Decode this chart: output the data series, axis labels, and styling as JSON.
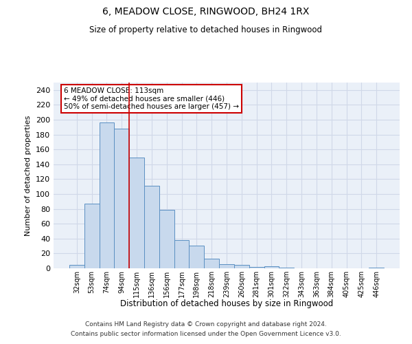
{
  "title": "6, MEADOW CLOSE, RINGWOOD, BH24 1RX",
  "subtitle": "Size of property relative to detached houses in Ringwood",
  "xlabel": "Distribution of detached houses by size in Ringwood",
  "ylabel": "Number of detached properties",
  "bar_categories": [
    "32sqm",
    "53sqm",
    "74sqm",
    "94sqm",
    "115sqm",
    "136sqm",
    "156sqm",
    "177sqm",
    "198sqm",
    "218sqm",
    "239sqm",
    "260sqm",
    "281sqm",
    "301sqm",
    "322sqm",
    "343sqm",
    "363sqm",
    "384sqm",
    "405sqm",
    "425sqm",
    "446sqm"
  ],
  "bar_values": [
    5,
    87,
    196,
    188,
    149,
    111,
    79,
    38,
    31,
    13,
    6,
    5,
    2,
    3,
    1,
    0,
    0,
    0,
    0,
    0,
    1
  ],
  "bar_color": "#c8d9ed",
  "bar_edge_color": "#5a8fc2",
  "vline_color": "#cc0000",
  "vline_x_index": 3.5,
  "annotation_text": "6 MEADOW CLOSE: 113sqm\n← 49% of detached houses are smaller (446)\n50% of semi-detached houses are larger (457) →",
  "annotation_box_color": "white",
  "annotation_box_edge_color": "#cc0000",
  "ylim": [
    0,
    250
  ],
  "yticks": [
    0,
    20,
    40,
    60,
    80,
    100,
    120,
    140,
    160,
    180,
    200,
    220,
    240
  ],
  "grid_color": "#d0d8e8",
  "bg_color": "#eaf0f8",
  "footer_line1": "Contains HM Land Registry data © Crown copyright and database right 2024.",
  "footer_line2": "Contains public sector information licensed under the Open Government Licence v3.0."
}
